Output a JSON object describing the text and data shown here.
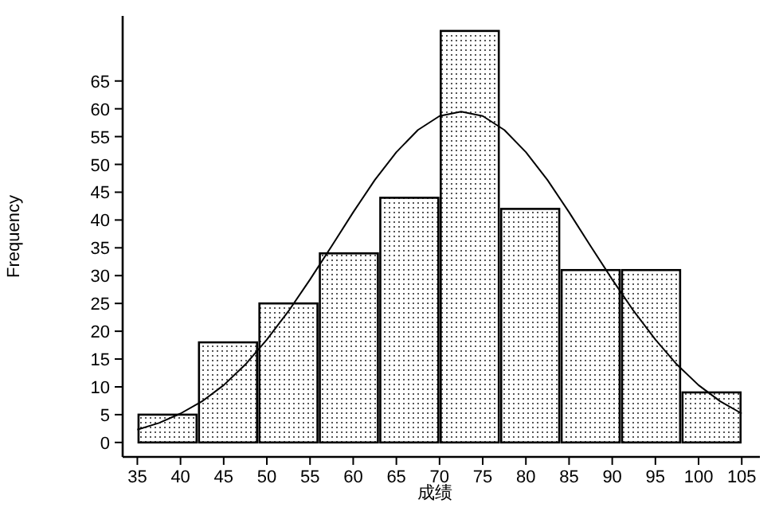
{
  "chart_data": {
    "type": "histogram",
    "xlabel": "成绩",
    "ylabel": "Frequency",
    "bins": [
      35,
      42,
      49,
      56,
      63,
      70,
      77,
      84,
      91,
      98,
      105
    ],
    "values": [
      5,
      18,
      25,
      34,
      44,
      74,
      42,
      31,
      31,
      9
    ],
    "series": [
      {
        "type": "line",
        "color": "#000000",
        "x": [
          35,
          37.5,
          40,
          42.5,
          45,
          47.5,
          50,
          52.5,
          55,
          57.5,
          60,
          62.5,
          65,
          67.5,
          70,
          72.5,
          75,
          77.5,
          80,
          82.5,
          85,
          87.5,
          90,
          92.5,
          95,
          97.5,
          100,
          102.5,
          105
        ],
        "values": [
          2.3,
          3.5,
          5.2,
          7.4,
          10.3,
          14.0,
          18.5,
          23.6,
          29.3,
          35.3,
          41.4,
          47.2,
          52.2,
          56.2,
          58.7,
          59.5,
          58.7,
          56.2,
          52.2,
          47.2,
          41.4,
          35.3,
          29.3,
          23.6,
          18.5,
          14.0,
          10.3,
          7.4,
          5.2
        ]
      }
    ],
    "xlim": [
      33.3,
      107.1
    ],
    "ylim": [
      -2.6,
      76.7
    ],
    "xticks": [
      35,
      40,
      45,
      50,
      55,
      60,
      65,
      70,
      75,
      80,
      85,
      90,
      95,
      100,
      105
    ],
    "yticks": [
      0,
      5,
      10,
      15,
      20,
      25,
      30,
      35,
      40,
      45,
      50,
      55,
      60,
      65
    ],
    "grid": false
  }
}
